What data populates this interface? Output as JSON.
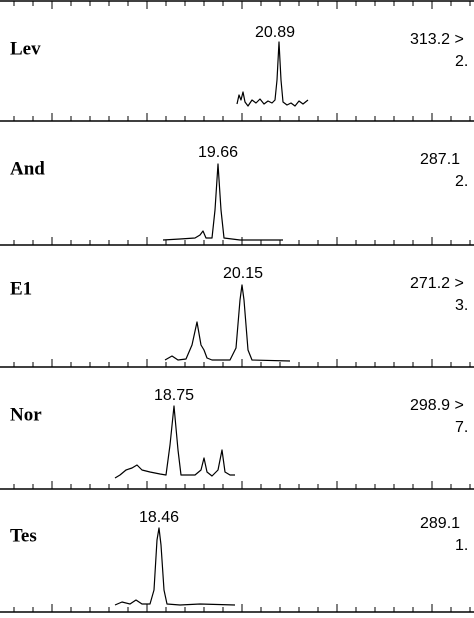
{
  "panels": [
    {
      "label": "Lev",
      "peak_label": "20.89",
      "transition": [
        "313.2 >",
        "2."
      ]
    },
    {
      "label": "And",
      "peak_label": "19.66",
      "transition": [
        "287.1",
        "2."
      ]
    },
    {
      "label": "E1",
      "peak_label": "20.15",
      "transition": [
        "271.2 >",
        "3."
      ]
    },
    {
      "label": "Nor",
      "peak_label": "18.75",
      "transition": [
        "298.9 >",
        "7."
      ]
    },
    {
      "label": "Tes",
      "peak_label": "18.46",
      "transition": [
        "289.1",
        "1."
      ]
    }
  ]
}
